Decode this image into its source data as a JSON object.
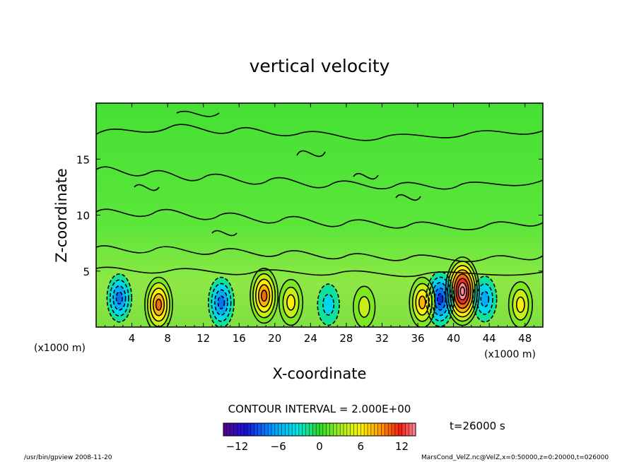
{
  "chart_data": {
    "type": "heatmap",
    "title": "vertical velocity",
    "xlabel": "X-coordinate",
    "ylabel": "Z-coordinate",
    "x_unit": "(x1000 m)",
    "xlim": [
      0,
      50
    ],
    "ylim": [
      0,
      20
    ],
    "x_ticks": [
      4,
      8,
      12,
      16,
      20,
      24,
      28,
      32,
      36,
      40,
      44,
      48
    ],
    "y_ticks": [
      5,
      10,
      15
    ],
    "contour_interval": "CONTOUR INTERVAL = 2.000E+00",
    "time_label": "t=26000 s",
    "colorbar": {
      "min": -14,
      "max": 14,
      "ticks": [
        -12,
        -6,
        0,
        6,
        12
      ]
    },
    "features": [
      {
        "x": 41,
        "z": 3.2,
        "value": 14
      },
      {
        "x": 38.5,
        "z": 2.5,
        "value": -8
      },
      {
        "x": 43.5,
        "z": 2.5,
        "value": -4
      },
      {
        "x": 36.5,
        "z": 2.2,
        "value": 6
      },
      {
        "x": 47.5,
        "z": 2.0,
        "value": 4
      },
      {
        "x": 18.8,
        "z": 2.8,
        "value": 8
      },
      {
        "x": 14,
        "z": 2.2,
        "value": -6
      },
      {
        "x": 7,
        "z": 2.0,
        "value": 8
      },
      {
        "x": 2.6,
        "z": 2.6,
        "value": -5
      },
      {
        "x": 21.8,
        "z": 2.2,
        "value": 4
      },
      {
        "x": 26,
        "z": 2.0,
        "value": -2
      },
      {
        "x": 30,
        "z": 1.8,
        "value": 2
      }
    ],
    "colors": {
      "high": "#ff0000",
      "mid": "#00dd00",
      "low": "#0000ff"
    }
  },
  "footer": {
    "left": "/usr/bin/gpview   2008-11-20",
    "right": "MarsCond_VelZ.nc@VelZ,x=0:50000,z=0:20000,t=026000"
  }
}
